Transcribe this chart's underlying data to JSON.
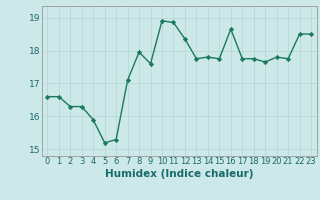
{
  "x": [
    0,
    1,
    2,
    3,
    4,
    5,
    6,
    7,
    8,
    9,
    10,
    11,
    12,
    13,
    14,
    15,
    16,
    17,
    18,
    19,
    20,
    21,
    22,
    23
  ],
  "y": [
    16.6,
    16.6,
    16.3,
    16.3,
    15.9,
    15.2,
    15.3,
    17.1,
    17.95,
    17.6,
    18.9,
    18.85,
    18.35,
    17.75,
    17.8,
    17.75,
    18.65,
    17.75,
    17.75,
    17.65,
    17.8,
    17.75,
    18.5,
    18.5
  ],
  "line_color": "#1a7a5e",
  "bg_color": "#cce8e8",
  "grid_color": "#b8d8d8",
  "xlabel": "Humidex (Indice chaleur)",
  "ylim": [
    14.8,
    19.35
  ],
  "xlim": [
    -0.5,
    23.5
  ],
  "yticks": [
    15,
    16,
    17,
    18,
    19
  ],
  "xticks": [
    0,
    1,
    2,
    3,
    4,
    5,
    6,
    7,
    8,
    9,
    10,
    11,
    12,
    13,
    14,
    15,
    16,
    17,
    18,
    19,
    20,
    21,
    22,
    23
  ],
  "font_color": "#1a6a6a",
  "marker": "D",
  "markersize": 2.2,
  "linewidth": 1.0,
  "xlabel_fontsize": 7.5,
  "tick_fontsize": 6.0,
  "ytick_fontsize": 6.5,
  "spine_color": "#999999"
}
